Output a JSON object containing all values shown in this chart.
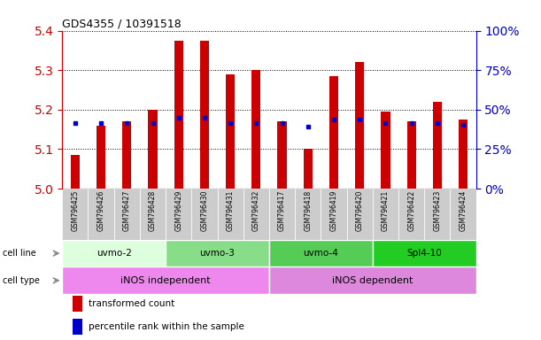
{
  "title": "GDS4355 / 10391518",
  "samples": [
    "GSM796425",
    "GSM796426",
    "GSM796427",
    "GSM796428",
    "GSM796429",
    "GSM796430",
    "GSM796431",
    "GSM796432",
    "GSM796417",
    "GSM796418",
    "GSM796419",
    "GSM796420",
    "GSM796421",
    "GSM796422",
    "GSM796423",
    "GSM796424"
  ],
  "red_values": [
    5.085,
    5.16,
    5.17,
    5.2,
    5.375,
    5.375,
    5.29,
    5.3,
    5.17,
    5.1,
    5.285,
    5.32,
    5.195,
    5.17,
    5.22,
    5.175
  ],
  "blue_values": [
    5.165,
    5.165,
    5.165,
    5.165,
    5.18,
    5.18,
    5.165,
    5.165,
    5.165,
    5.158,
    5.175,
    5.175,
    5.165,
    5.165,
    5.165,
    5.162
  ],
  "ylim_left": [
    5.0,
    5.4
  ],
  "ylim_right": [
    0,
    100
  ],
  "yticks_left": [
    5.0,
    5.1,
    5.2,
    5.3,
    5.4
  ],
  "yticks_right": [
    0,
    25,
    50,
    75,
    100
  ],
  "ytick_labels_right": [
    "0%",
    "25%",
    "50%",
    "75%",
    "100%"
  ],
  "cell_lines": [
    {
      "label": "uvmo-2",
      "start": 0,
      "end": 4,
      "color": "#deffde"
    },
    {
      "label": "uvmo-3",
      "start": 4,
      "end": 8,
      "color": "#88dd88"
    },
    {
      "label": "uvmo-4",
      "start": 8,
      "end": 12,
      "color": "#55cc55"
    },
    {
      "label": "Spl4-10",
      "start": 12,
      "end": 16,
      "color": "#22cc22"
    }
  ],
  "cell_types": [
    {
      "label": "iNOS independent",
      "start": 0,
      "end": 8,
      "color": "#ee88ee"
    },
    {
      "label": "iNOS dependent",
      "start": 8,
      "end": 16,
      "color": "#dd88dd"
    }
  ],
  "bar_color": "#cc0000",
  "dot_color": "#0000cc",
  "bar_width": 0.35,
  "background_color": "#ffffff",
  "left_axis_color": "#cc0000",
  "right_axis_color": "#0000cc",
  "sample_box_color": "#cccccc",
  "arrow_color": "#888888"
}
